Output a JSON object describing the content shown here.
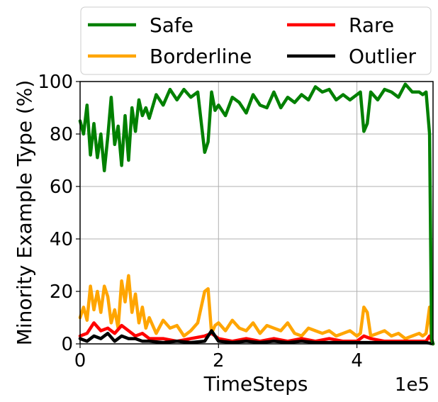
{
  "chart_data": {
    "type": "line",
    "title": "",
    "xlabel": "TimeSteps",
    "ylabel": "Minority Example Type (%)",
    "x_offset_text": "1e5",
    "xlim": [
      0,
      5.1
    ],
    "ylim": [
      0,
      100
    ],
    "xticks": [
      0,
      2,
      4
    ],
    "xtick_labels": [
      "0",
      "2",
      "4"
    ],
    "yticks": [
      0,
      20,
      40,
      60,
      80,
      100
    ],
    "ytick_labels": [
      "0",
      "20",
      "40",
      "60",
      "80",
      "100"
    ],
    "grid": true,
    "legend_position": "top, above plot, two columns",
    "series": [
      {
        "name": "Safe",
        "color": "#008000",
        "x": [
          0,
          0.05,
          0.1,
          0.15,
          0.2,
          0.25,
          0.3,
          0.35,
          0.4,
          0.45,
          0.5,
          0.55,
          0.6,
          0.65,
          0.7,
          0.75,
          0.8,
          0.85,
          0.9,
          0.95,
          1.0,
          1.1,
          1.2,
          1.3,
          1.4,
          1.5,
          1.6,
          1.7,
          1.8,
          1.85,
          1.9,
          1.95,
          2.0,
          2.1,
          2.2,
          2.3,
          2.4,
          2.5,
          2.6,
          2.7,
          2.8,
          2.9,
          3.0,
          3.1,
          3.2,
          3.3,
          3.4,
          3.5,
          3.6,
          3.7,
          3.8,
          3.9,
          4.0,
          4.05,
          4.1,
          4.15,
          4.2,
          4.3,
          4.4,
          4.5,
          4.6,
          4.7,
          4.8,
          4.9,
          4.95,
          5.0,
          5.05,
          5.08,
          5.1
        ],
        "values": [
          85,
          80,
          91,
          72,
          84,
          71,
          80,
          66,
          79,
          94,
          76,
          83,
          68,
          87,
          70,
          90,
          81,
          93,
          87,
          90,
          86,
          95,
          91,
          97,
          93,
          97,
          94,
          96,
          73,
          77,
          96,
          89,
          91,
          87,
          94,
          92,
          88,
          95,
          91,
          90,
          96,
          90,
          94,
          92,
          95,
          93,
          98,
          96,
          97,
          93,
          95,
          93,
          95,
          96,
          81,
          84,
          96,
          93,
          97,
          96,
          94,
          99,
          96,
          96,
          95,
          96,
          80,
          2,
          0
        ]
      },
      {
        "name": "Rare",
        "color": "#ff0000",
        "x": [
          0,
          0.1,
          0.2,
          0.3,
          0.4,
          0.5,
          0.6,
          0.7,
          0.8,
          0.9,
          1.0,
          1.2,
          1.4,
          1.6,
          1.8,
          1.9,
          2.0,
          2.2,
          2.4,
          2.6,
          2.8,
          3.0,
          3.2,
          3.4,
          3.6,
          3.8,
          4.0,
          4.1,
          4.2,
          4.4,
          4.6,
          4.8,
          5.0,
          5.05,
          5.1
        ],
        "values": [
          3,
          4,
          8,
          5,
          6,
          4,
          7,
          5,
          3,
          4,
          2,
          2,
          1,
          2,
          3,
          4,
          2,
          1,
          2,
          1,
          2,
          1,
          2,
          1,
          2,
          1,
          1,
          3,
          2,
          1,
          1,
          1,
          1,
          3,
          0
        ]
      },
      {
        "name": "Borderline",
        "color": "#ffa500",
        "x": [
          0,
          0.05,
          0.1,
          0.15,
          0.2,
          0.25,
          0.3,
          0.35,
          0.4,
          0.45,
          0.5,
          0.55,
          0.6,
          0.65,
          0.7,
          0.75,
          0.8,
          0.85,
          0.9,
          0.95,
          1.0,
          1.1,
          1.2,
          1.3,
          1.4,
          1.5,
          1.6,
          1.7,
          1.8,
          1.85,
          1.9,
          1.95,
          2.0,
          2.1,
          2.2,
          2.3,
          2.4,
          2.5,
          2.6,
          2.7,
          2.8,
          2.9,
          3.0,
          3.1,
          3.2,
          3.3,
          3.4,
          3.5,
          3.6,
          3.7,
          3.8,
          3.9,
          4.0,
          4.05,
          4.1,
          4.15,
          4.2,
          4.3,
          4.4,
          4.5,
          4.6,
          4.7,
          4.8,
          4.9,
          4.95,
          5.0,
          5.05,
          5.08,
          5.1
        ],
        "values": [
          10,
          14,
          9,
          22,
          13,
          20,
          12,
          22,
          18,
          8,
          13,
          6,
          24,
          16,
          26,
          12,
          19,
          8,
          14,
          6,
          10,
          4,
          9,
          6,
          7,
          3,
          5,
          8,
          20,
          21,
          4,
          7,
          8,
          5,
          9,
          6,
          5,
          8,
          4,
          7,
          6,
          5,
          8,
          4,
          3,
          6,
          5,
          4,
          5,
          3,
          4,
          5,
          3,
          4,
          14,
          12,
          3,
          4,
          5,
          3,
          4,
          2,
          3,
          4,
          3,
          4,
          14,
          1,
          0
        ]
      },
      {
        "name": "Outlier",
        "color": "#000000",
        "x": [
          0,
          0.1,
          0.2,
          0.3,
          0.4,
          0.5,
          0.6,
          0.7,
          0.8,
          0.9,
          1.0,
          1.2,
          1.4,
          1.6,
          1.8,
          1.9,
          2.0,
          2.2,
          2.4,
          2.6,
          2.8,
          3.0,
          3.2,
          3.4,
          3.6,
          3.8,
          4.0,
          4.2,
          4.4,
          4.6,
          4.8,
          5.0,
          5.1
        ],
        "values": [
          2,
          1,
          3,
          2,
          4,
          1,
          3,
          2,
          2,
          1,
          1,
          0.5,
          1,
          0.5,
          1,
          5,
          1,
          0.5,
          1,
          0.5,
          1,
          0.5,
          1,
          0.5,
          0.5,
          0.5,
          0.5,
          0.5,
          0.5,
          0.5,
          0.5,
          0.5,
          0
        ]
      }
    ]
  }
}
